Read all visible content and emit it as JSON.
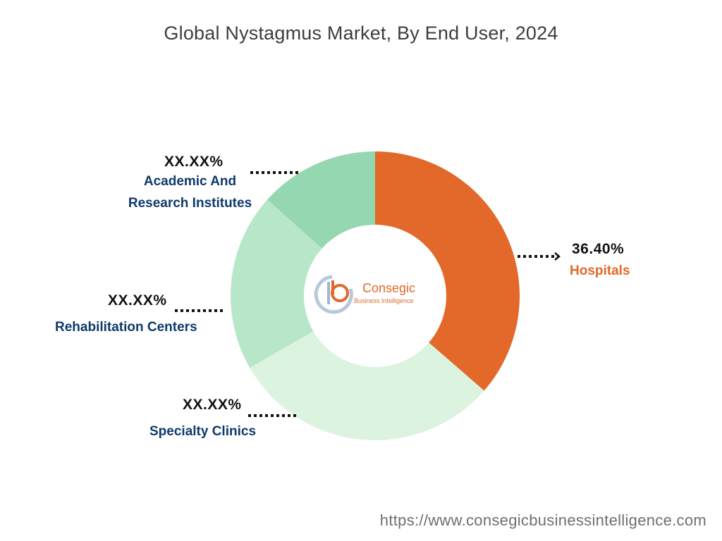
{
  "chart_data": {
    "type": "pie",
    "title": "Global Nystagmus Market, By End User, 2024",
    "categories": [
      "Hospitals",
      "Specialty Clinics",
      "Rehabilitation Centers",
      "Academic And Research Institutes"
    ],
    "values": [
      36.4,
      30.3,
      19.9,
      13.4
    ],
    "value_labels": [
      "36.40%",
      "XX.XX%",
      "XX.XX%",
      "XX.XX%"
    ],
    "donut": true,
    "colors": [
      "#e2692a",
      "#dcf3df",
      "#b7e7c8",
      "#95d7b1"
    ],
    "legend": "none"
  },
  "logo": {
    "icon": "consegic-logo-icon",
    "name": "Consegic",
    "tagline": "Business Intelligence"
  },
  "source": "https://www.consegicbusinessintelligence.com"
}
